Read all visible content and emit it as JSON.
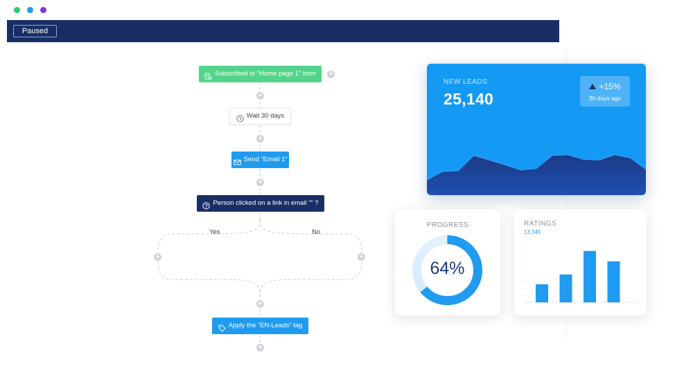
{
  "window": {
    "dots": [
      {
        "name": "window-dot-green",
        "color": "#2ecc71"
      },
      {
        "name": "window-dot-blue",
        "color": "#1f9bf0"
      },
      {
        "name": "window-dot-purple",
        "color": "#7b3fd4"
      }
    ]
  },
  "toolbar": {
    "status_label": "Paused"
  },
  "flow": {
    "trigger_label": "Subscribed to “Home page 1” form",
    "wait_label": "Wait 30 days",
    "email_label": "Send “Email 1”",
    "condition_label": "Person clicked on a link in email “” ?",
    "yes_label": "Yes",
    "no_label": "No",
    "tag_label": "Apply the “EN-Leads” tag",
    "add_step_symbol": "+"
  },
  "leads": {
    "title": "NEW LEADS",
    "value": "25,140",
    "change": "+15%",
    "period": "30 days ago",
    "trend": [
      0.2,
      0.31,
      0.32,
      0.52,
      0.46,
      0.4,
      0.33,
      0.35,
      0.52,
      0.53,
      0.47,
      0.46,
      0.53,
      0.49,
      0.34
    ]
  },
  "progress": {
    "title": "PROGRESS",
    "value": "64%",
    "fraction": 0.64
  },
  "ratings": {
    "title": "RATINGS",
    "count": "13,345",
    "bar_values": [
      0.33,
      0.51,
      0.94,
      0.75
    ]
  },
  "colors": {
    "navy": "#1a2e66",
    "blue": "#1f9bf0",
    "green": "#52d48a",
    "card_blue": "#1499f4",
    "chart_dark": "#1e3a8a"
  }
}
